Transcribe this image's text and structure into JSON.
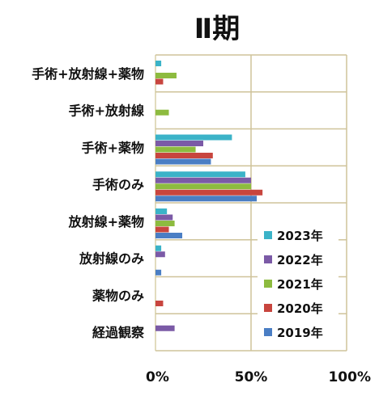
{
  "chart_data": {
    "type": "bar",
    "orientation": "horizontal",
    "title": "Ⅱ期",
    "categories": [
      "手術+放射線+薬物",
      "手術+放射線",
      "手術+薬物",
      "手術のみ",
      "放射線+薬物",
      "放射線のみ",
      "薬物のみ",
      "経過観察"
    ],
    "x_ticks": [
      "0%",
      "50%",
      "100%"
    ],
    "xlim": [
      0,
      100
    ],
    "grid": true,
    "legend_position": "inside-bottom-right",
    "series": [
      {
        "name": "2023年",
        "color": "#3bb3c8",
        "values": [
          3,
          0,
          40,
          47,
          6,
          3,
          0,
          0
        ]
      },
      {
        "name": "2022年",
        "color": "#7b5aa6",
        "values": [
          0,
          0,
          25,
          50,
          9,
          5,
          0,
          10
        ]
      },
      {
        "name": "2021年",
        "color": "#8dbb3f",
        "values": [
          11,
          7,
          21,
          50,
          10,
          0,
          0,
          0
        ]
      },
      {
        "name": "2020年",
        "color": "#c8453e",
        "values": [
          4,
          0,
          30,
          56,
          7,
          0,
          4,
          0
        ]
      },
      {
        "name": "2019年",
        "color": "#4a7ec4",
        "values": [
          0,
          0,
          29,
          53,
          14,
          3,
          0,
          0
        ]
      }
    ]
  }
}
